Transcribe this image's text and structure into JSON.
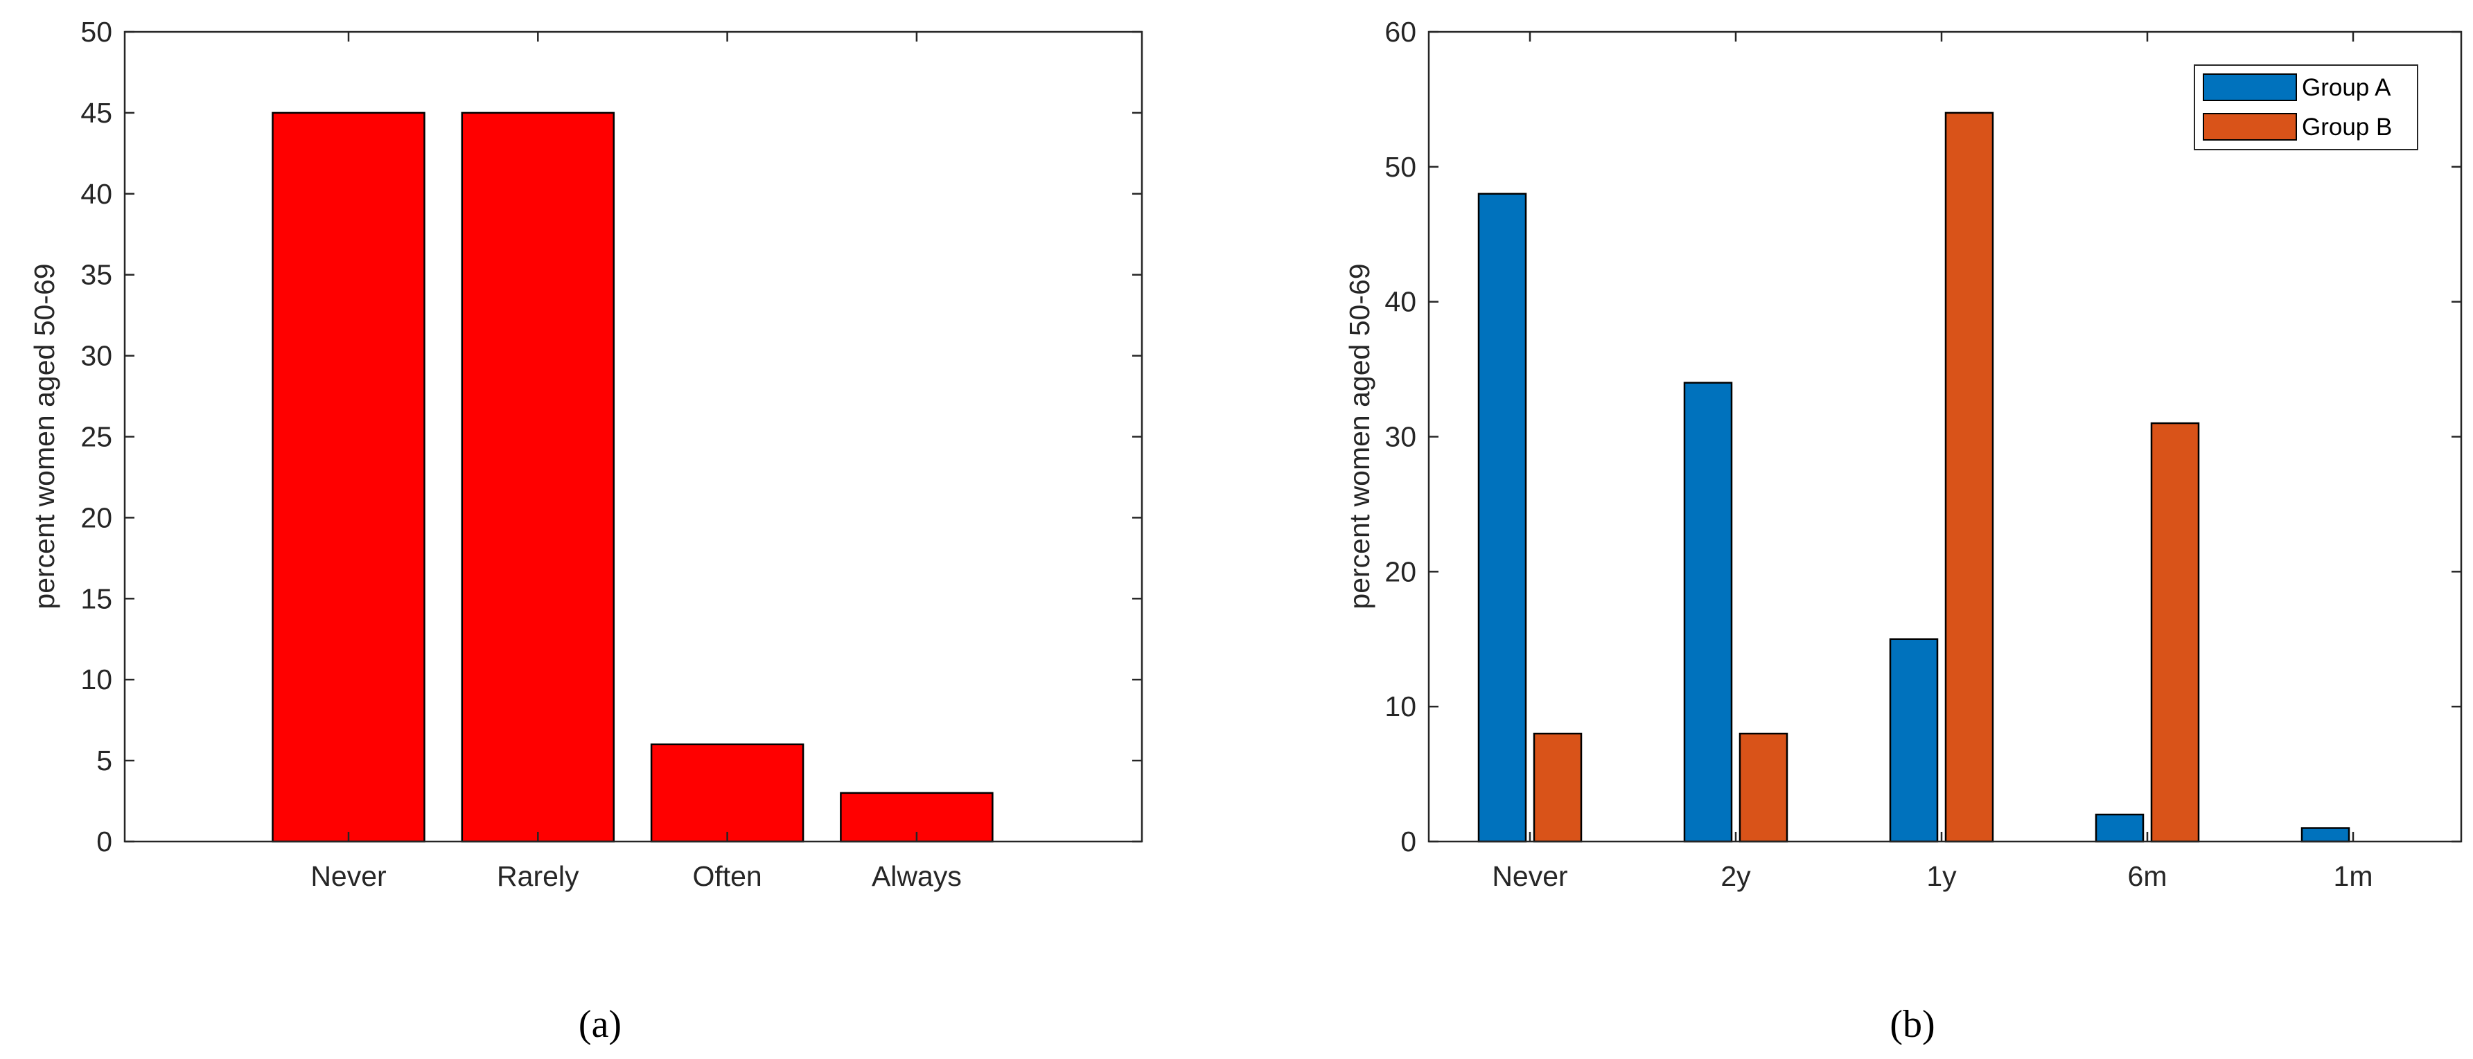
{
  "chart_data": [
    {
      "type": "bar",
      "panel_label": "(a)",
      "categories": [
        "Never",
        "Rarely",
        "Often",
        "Always"
      ],
      "values": [
        45,
        45,
        6,
        3
      ],
      "color": "#ff0000",
      "xlabel": "",
      "ylabel": "percent women aged 50-69",
      "ylim": [
        0,
        50
      ],
      "yticks": [
        0,
        5,
        10,
        15,
        20,
        25,
        30,
        35,
        40,
        45,
        50
      ],
      "grid": false,
      "legend": "none"
    },
    {
      "type": "bar",
      "panel_label": "(b)",
      "categories": [
        "Never",
        "2y",
        "1y",
        "6m",
        "1m"
      ],
      "series": [
        {
          "name": "Group A",
          "color": "#0072bd",
          "values": [
            48,
            34,
            15,
            2,
            1
          ]
        },
        {
          "name": "Group B",
          "color": "#d95319",
          "values": [
            8,
            8,
            54,
            31,
            0
          ]
        }
      ],
      "xlabel": "",
      "ylabel": "percent women aged 50-69",
      "ylim": [
        0,
        60
      ],
      "yticks": [
        0,
        10,
        20,
        30,
        40,
        50,
        60
      ],
      "grid": false,
      "legend": "top-right"
    }
  ]
}
